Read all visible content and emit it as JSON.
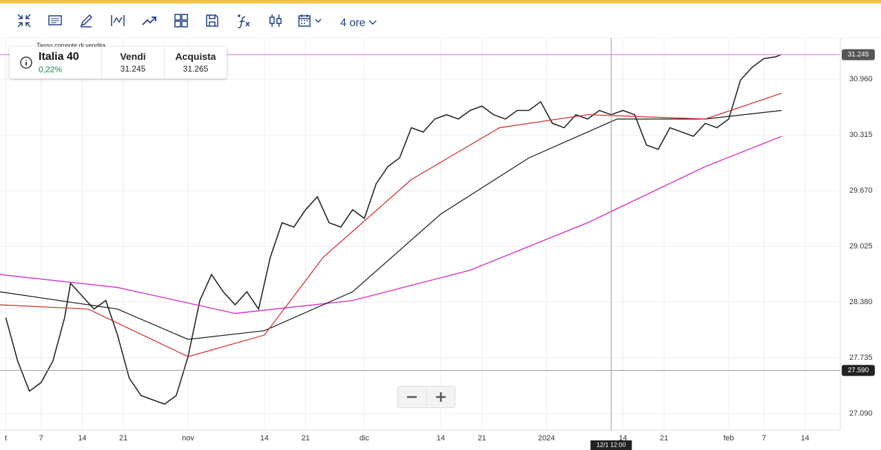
{
  "toolbar": {
    "interval": "4 ore"
  },
  "instrument": {
    "tooltip": "Tasso corrente di vendita",
    "name": "Italia 40",
    "change": "0,22%",
    "sell_label": "Vendi",
    "sell": "31.245",
    "buy_label": "Acquista",
    "buy": "31.265"
  },
  "chart_data": {
    "type": "line",
    "xlim": [
      0,
      143
    ],
    "ylim": [
      26.9,
      31.44
    ],
    "grid": true,
    "xticks": [
      {
        "value": 1,
        "label": "t"
      },
      7,
      14,
      21,
      {
        "value": 32,
        "label": "nov"
      },
      {
        "value": 45,
        "label": "14"
      },
      {
        "value": 52,
        "label": "21"
      },
      {
        "value": 62,
        "label": "dic"
      },
      {
        "value": 75,
        "label": "14"
      },
      {
        "value": 82,
        "label": "21"
      },
      {
        "value": 93,
        "label": "2024"
      },
      {
        "value": 106,
        "label": "14"
      },
      {
        "value": 113,
        "label": "21"
      },
      {
        "value": 124,
        "label": "feb"
      },
      {
        "value": 130,
        "label": "7"
      },
      {
        "value": 137,
        "label": "14"
      }
    ],
    "yticks": [
      {
        "value": 27.09,
        "label": "27.090"
      },
      {
        "value": 27.735,
        "label": "27.735"
      },
      {
        "value": 28.38,
        "label": "28.380"
      },
      {
        "value": 29.025,
        "label": "29.025"
      },
      {
        "value": 29.67,
        "label": "29.670"
      },
      {
        "value": 30.315,
        "label": "30.315"
      },
      {
        "value": 30.96,
        "label": "30.960"
      }
    ],
    "price_line": {
      "value": 31.245,
      "label": "31.245",
      "color": "#e879e8"
    },
    "crosshair": {
      "value": 27.59,
      "label": "27.590",
      "x_value": 104,
      "x_label": "12/1 12:00"
    },
    "series": [
      {
        "color": "#222222",
        "width": 1.6,
        "x": [
          1,
          3,
          5,
          7,
          9,
          11,
          12,
          14,
          16,
          18,
          20,
          22,
          24,
          26,
          28,
          30,
          32,
          34,
          36,
          38,
          40,
          42,
          44,
          46,
          48,
          50,
          52,
          54,
          56,
          58,
          60,
          62,
          64,
          66,
          68,
          70,
          72,
          74,
          76,
          78,
          80,
          82,
          84,
          86,
          88,
          90,
          92,
          94,
          96,
          98,
          100,
          102,
          104,
          106,
          108,
          110,
          112,
          114,
          116,
          118,
          120,
          122,
          124,
          126,
          128,
          130,
          132,
          133
        ],
        "values": [
          28.2,
          27.7,
          27.35,
          27.45,
          27.7,
          28.2,
          28.6,
          28.45,
          28.3,
          28.4,
          28.0,
          27.5,
          27.3,
          27.25,
          27.2,
          27.3,
          27.75,
          28.4,
          28.7,
          28.5,
          28.35,
          28.5,
          28.3,
          28.9,
          29.3,
          29.25,
          29.45,
          29.6,
          29.3,
          29.25,
          29.45,
          29.35,
          29.75,
          29.95,
          30.05,
          30.4,
          30.35,
          30.5,
          30.55,
          30.5,
          30.6,
          30.65,
          30.55,
          30.5,
          30.6,
          30.6,
          30.7,
          30.45,
          30.4,
          30.55,
          30.5,
          30.6,
          30.55,
          30.6,
          30.55,
          30.2,
          30.15,
          30.4,
          30.35,
          30.3,
          30.45,
          30.4,
          30.5,
          30.95,
          31.1,
          31.2,
          31.22,
          31.25
        ]
      },
      {
        "color": "#d62fc9",
        "width": 1.4,
        "x": [
          0,
          20,
          40,
          60,
          80,
          100,
          120,
          133
        ],
        "values": [
          28.7,
          28.55,
          28.25,
          28.4,
          28.75,
          29.3,
          29.95,
          30.3
        ]
      },
      {
        "color": "#111111",
        "width": 1.2,
        "x": [
          0,
          20,
          32,
          45,
          60,
          75,
          90,
          105,
          120,
          133
        ],
        "values": [
          28.5,
          28.3,
          27.95,
          28.05,
          28.5,
          29.4,
          30.05,
          30.5,
          30.5,
          30.6
        ]
      },
      {
        "color": "#d61f1f",
        "width": 1.2,
        "x": [
          0,
          15,
          32,
          45,
          55,
          70,
          85,
          100,
          120,
          133
        ],
        "values": [
          28.35,
          28.3,
          27.75,
          28.0,
          28.9,
          29.8,
          30.4,
          30.55,
          30.5,
          30.8
        ]
      }
    ]
  }
}
